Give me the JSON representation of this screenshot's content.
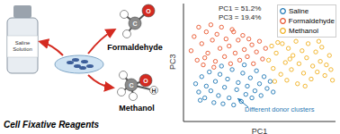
{
  "chart_data": {
    "type": "scatter",
    "xlabel": "PC1",
    "ylabel": "PC3",
    "xlim": [
      0,
      10
    ],
    "ylim": [
      0,
      10
    ],
    "tick_labels": false,
    "legend": "upper right",
    "annotations": [
      "PC1 = 51.2%",
      "PC3 = 19.4%",
      "Different donor clusters"
    ],
    "series": [
      {
        "name": "Saline",
        "color": "#1f77b4",
        "marker": "o",
        "values": [
          [
            0.8,
            3.2
          ],
          [
            1.0,
            2.5
          ],
          [
            1.2,
            3.8
          ],
          [
            1.4,
            2.0
          ],
          [
            1.5,
            3.0
          ],
          [
            1.7,
            4.2
          ],
          [
            1.8,
            2.6
          ],
          [
            2.0,
            1.6
          ],
          [
            2.1,
            3.4
          ],
          [
            2.3,
            2.2
          ],
          [
            2.4,
            4.0
          ],
          [
            2.6,
            1.5
          ],
          [
            2.7,
            2.9
          ],
          [
            2.9,
            3.6
          ],
          [
            3.0,
            2.0
          ],
          [
            3.2,
            4.4
          ],
          [
            3.3,
            1.4
          ],
          [
            3.5,
            2.7
          ],
          [
            3.6,
            3.3
          ],
          [
            3.8,
            1.7
          ],
          [
            3.9,
            4.1
          ],
          [
            4.1,
            2.3
          ],
          [
            4.2,
            3.0
          ],
          [
            4.4,
            3.7
          ],
          [
            4.5,
            2.0
          ],
          [
            4.7,
            2.6
          ],
          [
            4.8,
            4.3
          ],
          [
            5.0,
            3.2
          ],
          [
            5.1,
            2.2
          ],
          [
            5.3,
            3.8
          ],
          [
            5.5,
            2.8
          ],
          [
            5.7,
            3.4
          ],
          [
            5.9,
            2.5
          ],
          [
            1.1,
            1.8
          ],
          [
            2.5,
            4.7
          ],
          [
            4.0,
            4.8
          ]
        ]
      },
      {
        "name": "Formaldehyde",
        "color": "#e8532a",
        "marker": "o",
        "values": [
          [
            0.5,
            6.0
          ],
          [
            0.7,
            7.2
          ],
          [
            0.9,
            5.2
          ],
          [
            1.0,
            8.0
          ],
          [
            1.2,
            6.6
          ],
          [
            1.3,
            4.8
          ],
          [
            1.5,
            7.6
          ],
          [
            1.6,
            5.8
          ],
          [
            1.8,
            8.2
          ],
          [
            1.9,
            6.9
          ],
          [
            2.1,
            5.1
          ],
          [
            2.2,
            7.4
          ],
          [
            2.4,
            6.2
          ],
          [
            2.5,
            8.0
          ],
          [
            2.7,
            5.5
          ],
          [
            2.8,
            7.0
          ],
          [
            3.0,
            6.4
          ],
          [
            3.1,
            4.9
          ],
          [
            3.3,
            7.6
          ],
          [
            3.4,
            5.8
          ],
          [
            3.6,
            6.9
          ],
          [
            3.7,
            5.2
          ],
          [
            3.9,
            7.3
          ],
          [
            4.0,
            6.1
          ],
          [
            4.2,
            5.5
          ],
          [
            4.3,
            7.0
          ],
          [
            4.5,
            6.5
          ],
          [
            4.6,
            4.9
          ],
          [
            4.8,
            5.9
          ],
          [
            5.0,
            6.8
          ],
          [
            5.2,
            5.3
          ],
          [
            5.4,
            6.2
          ],
          [
            1.4,
            5.4
          ],
          [
            2.0,
            4.6
          ],
          [
            3.2,
            7.8
          ]
        ]
      },
      {
        "name": "Methanol",
        "color": "#f0b020",
        "marker": "o",
        "values": [
          [
            5.6,
            5.2
          ],
          [
            5.8,
            6.4
          ],
          [
            5.9,
            4.5
          ],
          [
            6.1,
            5.8
          ],
          [
            6.2,
            6.7
          ],
          [
            6.4,
            4.0
          ],
          [
            6.5,
            6.6
          ],
          [
            6.7,
            5.0
          ],
          [
            6.8,
            3.5
          ],
          [
            6.9,
            6.2
          ],
          [
            7.1,
            4.4
          ],
          [
            7.2,
            5.6
          ],
          [
            7.4,
            6.8
          ],
          [
            7.5,
            3.2
          ],
          [
            7.6,
            4.9
          ],
          [
            7.8,
            6.0
          ],
          [
            7.9,
            4.1
          ],
          [
            8.1,
            5.4
          ],
          [
            8.2,
            6.6
          ],
          [
            8.4,
            3.6
          ],
          [
            8.5,
            4.7
          ],
          [
            8.7,
            5.9
          ],
          [
            8.8,
            4.2
          ],
          [
            9.0,
            5.1
          ],
          [
            9.1,
            6.3
          ],
          [
            9.3,
            3.9
          ],
          [
            9.4,
            4.8
          ],
          [
            9.6,
            5.6
          ],
          [
            9.7,
            4.4
          ],
          [
            6.0,
            3.4
          ],
          [
            7.0,
            5.3
          ],
          [
            8.0,
            3.0
          ],
          [
            8.9,
            6.8
          ],
          [
            9.8,
            3.5
          ]
        ]
      }
    ]
  },
  "diagram": {
    "bottle_label": "Saline Solution",
    "caption": "Cell Fixative Reagents",
    "molecules": [
      {
        "name": "Formaldehyde",
        "atoms": [
          "O",
          "C"
        ]
      },
      {
        "name": "Methanol",
        "atoms": [
          "O",
          "H",
          "C"
        ]
      }
    ]
  }
}
